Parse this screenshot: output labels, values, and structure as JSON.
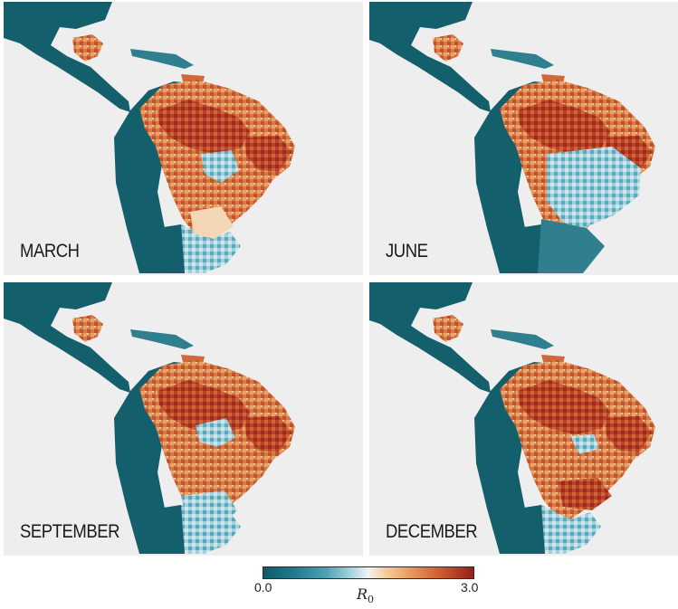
{
  "panels": [
    {
      "id": "p-mar",
      "label": "MARCH"
    },
    {
      "id": "p-jun",
      "label": "JUNE"
    },
    {
      "id": "p-sep",
      "label": "SEPTEMBER"
    },
    {
      "id": "p-dec",
      "label": "DECEMBER"
    }
  ],
  "colorbar": {
    "min_label": "0.0",
    "max_label": "3.0",
    "title": "R",
    "title_subscript": "0",
    "range": [
      0.0,
      3.0
    ],
    "colors": {
      "low": "#0b5c6b",
      "mid": "#f3f3f1",
      "high": "#9a1f1a"
    }
  },
  "map_colors": {
    "ocean": "#eeeeee",
    "low_region": "#145f6c",
    "light_blue": "#7cc1cf",
    "cream": "#f2dcc0",
    "orange": "#e08a4f",
    "red": "#b9432a"
  }
}
